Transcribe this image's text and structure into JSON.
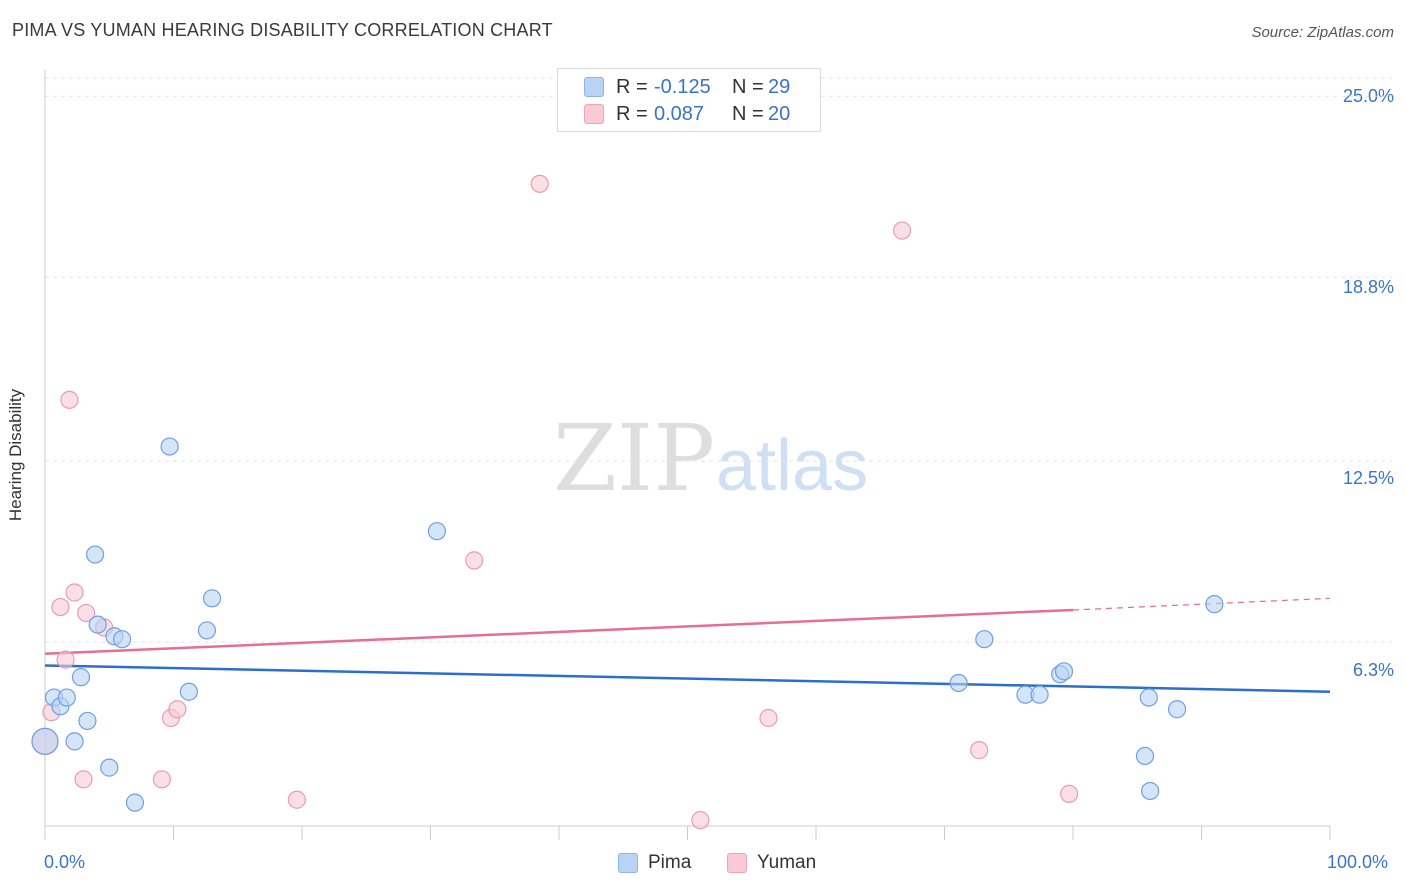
{
  "title": "PIMA VS YUMAN HEARING DISABILITY CORRELATION CHART",
  "source": "Source: ZipAtlas.com",
  "watermark": {
    "zip": "ZIP",
    "atlas": "atlas"
  },
  "colors": {
    "pima_fill": "#b9d3f5",
    "pima_stroke": "#6fa0df",
    "pima_line": "#2a6fcb",
    "yuman_fill": "#f9c9d6",
    "yuman_stroke": "#ea9bb2",
    "yuman_line": "#e46e94",
    "tick_text": "#3b73c8"
  },
  "legend_top": {
    "rows": [
      {
        "r_label": "R =",
        "r_value": "-0.125",
        "n_label": "N =",
        "n_value": "29"
      },
      {
        "r_label": "R =",
        "r_value": "0.087",
        "n_label": "N =",
        "n_value": "20"
      }
    ]
  },
  "legend_bottom": [
    "Pima",
    "Yuman"
  ],
  "chart_data": {
    "type": "scatter",
    "title": "PIMA VS YUMAN HEARING DISABILITY CORRELATION CHART",
    "xlabel": "",
    "ylabel": "Hearing Disability",
    "xlim": [
      0,
      100
    ],
    "ylim": [
      0,
      25.9
    ],
    "y_ticks": [
      6.3,
      12.5,
      18.8,
      25.0
    ],
    "y_tick_labels": [
      "6.3%",
      "12.5%",
      "18.8%",
      "25.0%"
    ],
    "x_tick_labels": [
      "0.0%",
      "100.0%"
    ],
    "grid": true,
    "series": [
      {
        "name": "Pima",
        "points": [
          [
            0.0,
            2.9
          ],
          [
            0.7,
            4.4
          ],
          [
            1.2,
            4.1
          ],
          [
            1.7,
            4.4
          ],
          [
            2.3,
            2.9
          ],
          [
            2.8,
            5.1
          ],
          [
            3.3,
            3.6
          ],
          [
            3.9,
            9.3
          ],
          [
            4.1,
            6.9
          ],
          [
            5.0,
            2.0
          ],
          [
            5.4,
            6.5
          ],
          [
            6.0,
            6.4
          ],
          [
            7.0,
            0.8
          ],
          [
            9.7,
            13.0
          ],
          [
            11.2,
            4.6
          ],
          [
            12.6,
            6.7
          ],
          [
            13.0,
            7.8
          ],
          [
            30.5,
            10.1
          ],
          [
            71.1,
            4.9
          ],
          [
            73.1,
            6.4
          ],
          [
            76.3,
            4.5
          ],
          [
            77.4,
            4.5
          ],
          [
            79.0,
            5.2
          ],
          [
            79.3,
            5.3
          ],
          [
            85.6,
            2.4
          ],
          [
            85.9,
            4.4
          ],
          [
            86.0,
            1.2
          ],
          [
            88.1,
            4.0
          ],
          [
            91.0,
            7.6
          ]
        ],
        "trend": {
          "x": [
            0,
            100
          ],
          "y": [
            5.5,
            4.6
          ]
        }
      },
      {
        "name": "Yuman",
        "points": [
          [
            0.0,
            2.9
          ],
          [
            0.5,
            3.9
          ],
          [
            1.2,
            7.5
          ],
          [
            1.6,
            5.7
          ],
          [
            1.9,
            14.6
          ],
          [
            2.3,
            8.0
          ],
          [
            3.0,
            1.6
          ],
          [
            3.2,
            7.3
          ],
          [
            4.6,
            6.8
          ],
          [
            9.1,
            1.6
          ],
          [
            9.8,
            3.7
          ],
          [
            10.3,
            4.0
          ],
          [
            19.6,
            0.9
          ],
          [
            33.4,
            9.1
          ],
          [
            38.5,
            22.0
          ],
          [
            51.0,
            0.2
          ],
          [
            56.3,
            3.7
          ],
          [
            66.7,
            20.4
          ],
          [
            72.7,
            2.6
          ],
          [
            79.7,
            1.1
          ]
        ],
        "trend": {
          "x": [
            0,
            80
          ],
          "y": [
            5.9,
            7.4
          ]
        },
        "trend_dashed": {
          "x": [
            80,
            100
          ],
          "y": [
            7.4,
            7.8
          ]
        }
      }
    ]
  }
}
